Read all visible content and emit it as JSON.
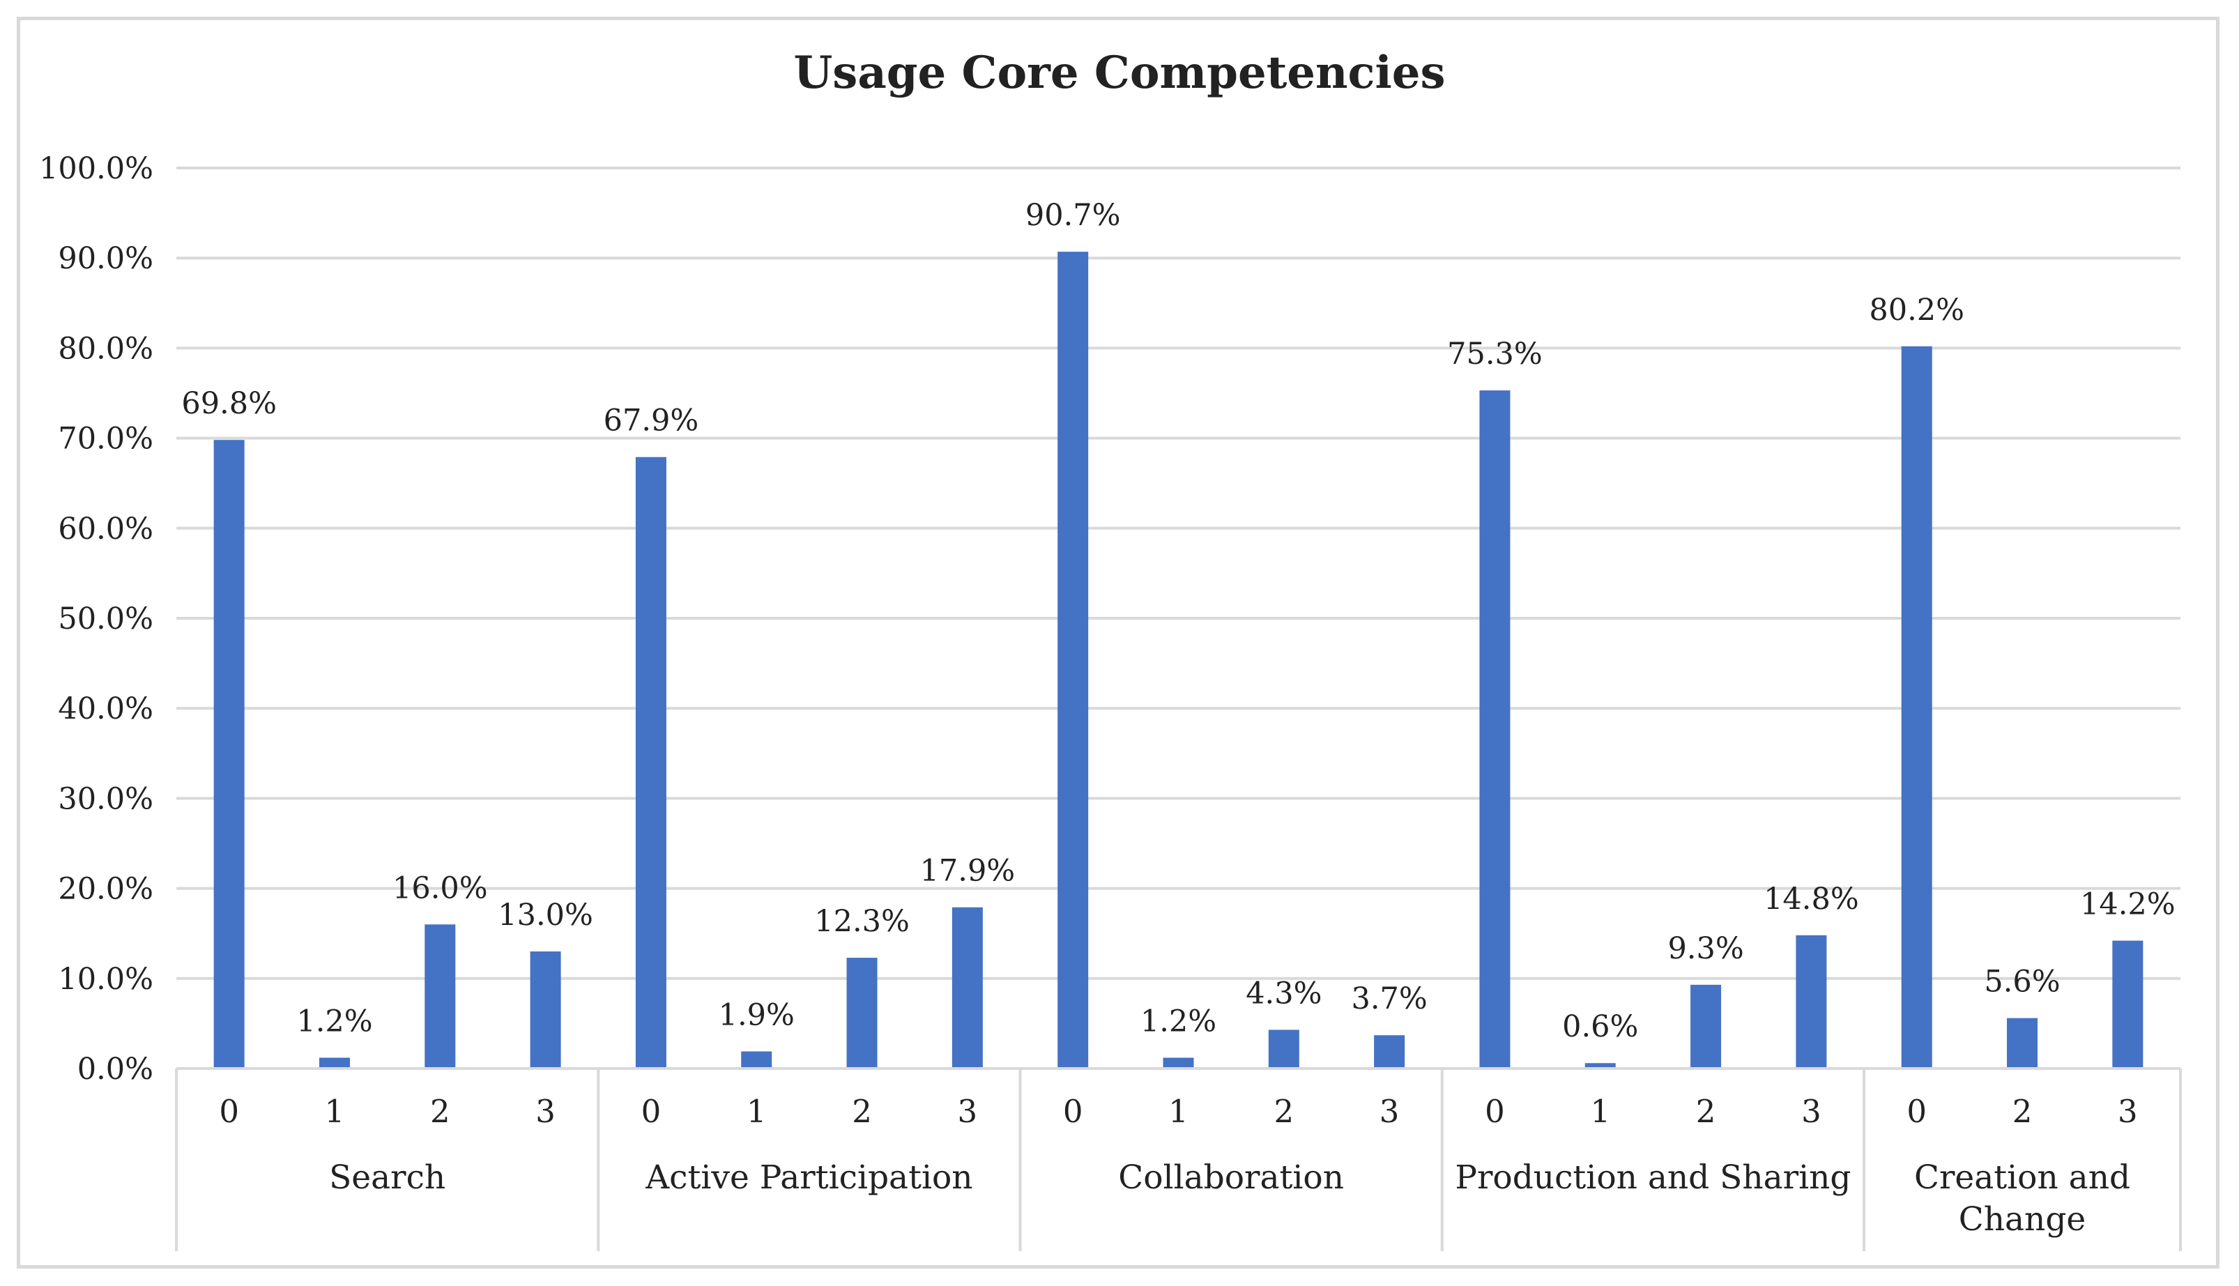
{
  "chart_data": {
    "type": "bar",
    "title": "Usage Core Competencies",
    "xlabel": "",
    "ylabel": "",
    "ylim": [
      0,
      100
    ],
    "yticks": [
      0,
      10,
      20,
      30,
      40,
      50,
      60,
      70,
      80,
      90,
      100
    ],
    "ytick_labels": [
      "0.0%",
      "10.0%",
      "20.0%",
      "30.0%",
      "40.0%",
      "50.0%",
      "60.0%",
      "70.0%",
      "80.0%",
      "90.0%",
      "100.0%"
    ],
    "grid": true,
    "bar_color": "#4472c4",
    "groups": [
      {
        "name": "Search",
        "name_lines": [
          "Search"
        ],
        "categories": [
          "0",
          "1",
          "2",
          "3"
        ],
        "values": [
          69.8,
          1.2,
          16.0,
          13.0
        ],
        "labels": [
          "69.8%",
          "1.2%",
          "16.0%",
          "13.0%"
        ]
      },
      {
        "name": "Active Participation",
        "name_lines": [
          "Active Participation"
        ],
        "categories": [
          "0",
          "1",
          "2",
          "3"
        ],
        "values": [
          67.9,
          1.9,
          12.3,
          17.9
        ],
        "labels": [
          "67.9%",
          "1.9%",
          "12.3%",
          "17.9%"
        ]
      },
      {
        "name": "Collaboration",
        "name_lines": [
          "Collaboration"
        ],
        "categories": [
          "0",
          "1",
          "2",
          "3"
        ],
        "values": [
          90.7,
          1.2,
          4.3,
          3.7
        ],
        "labels": [
          "90.7%",
          "1.2%",
          "4.3%",
          "3.7%"
        ]
      },
      {
        "name": "Production and Sharing",
        "name_lines": [
          "Production and Sharing"
        ],
        "categories": [
          "0",
          "1",
          "2",
          "3"
        ],
        "values": [
          75.3,
          0.6,
          9.3,
          14.8
        ],
        "labels": [
          "75.3%",
          "0.6%",
          "9.3%",
          "14.8%"
        ]
      },
      {
        "name": "Creation and Change",
        "name_lines": [
          "Creation and",
          "Change"
        ],
        "categories": [
          "0",
          "2",
          "3"
        ],
        "values": [
          80.2,
          5.6,
          14.2
        ],
        "labels": [
          "80.2%",
          "5.6%",
          "14.2%"
        ]
      }
    ]
  }
}
